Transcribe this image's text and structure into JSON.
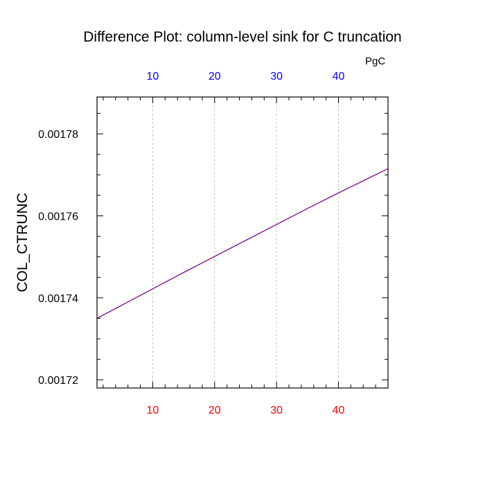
{
  "chart_data": {
    "type": "line",
    "title": "Difference Plot: column-level sink for C truncation",
    "ylabel": "COL_CTRUNC",
    "top_axis_unit": "PgC",
    "xlim": [
      1,
      48
    ],
    "ylim": [
      0.001718,
      0.001789
    ],
    "x_ticks": [
      10,
      20,
      30,
      40
    ],
    "x_tick_labels": [
      "10",
      "20",
      "30",
      "40"
    ],
    "y_ticks": [
      0.00172,
      0.00174,
      0.00176,
      0.00178
    ],
    "y_tick_labels": [
      "0.00172",
      "0.00174",
      "0.00176",
      "0.00178"
    ],
    "grid": "vertical dashed",
    "colors": {
      "bottom_axis_labels": "#ff0000",
      "top_axis_labels": "#0000ff",
      "series_1": "#0000ff",
      "series_2": "#ff0000",
      "grid": "#b0b0b0"
    },
    "series": [
      {
        "x": [
          1,
          5,
          10,
          15,
          20,
          25,
          30,
          35,
          40,
          45,
          48
        ],
        "values": [
          0.001735,
          0.0017382,
          0.0017422,
          0.0017462,
          0.0017501,
          0.001754,
          0.0017579,
          0.0017618,
          0.0017656,
          0.0017693,
          0.0017715
        ]
      },
      {
        "x": [
          1,
          5,
          10,
          15,
          20,
          25,
          30,
          35,
          40,
          45,
          48
        ],
        "values": [
          0.001735,
          0.0017382,
          0.0017422,
          0.0017462,
          0.0017501,
          0.001754,
          0.0017579,
          0.0017618,
          0.0017656,
          0.0017693,
          0.0017715
        ]
      }
    ]
  }
}
